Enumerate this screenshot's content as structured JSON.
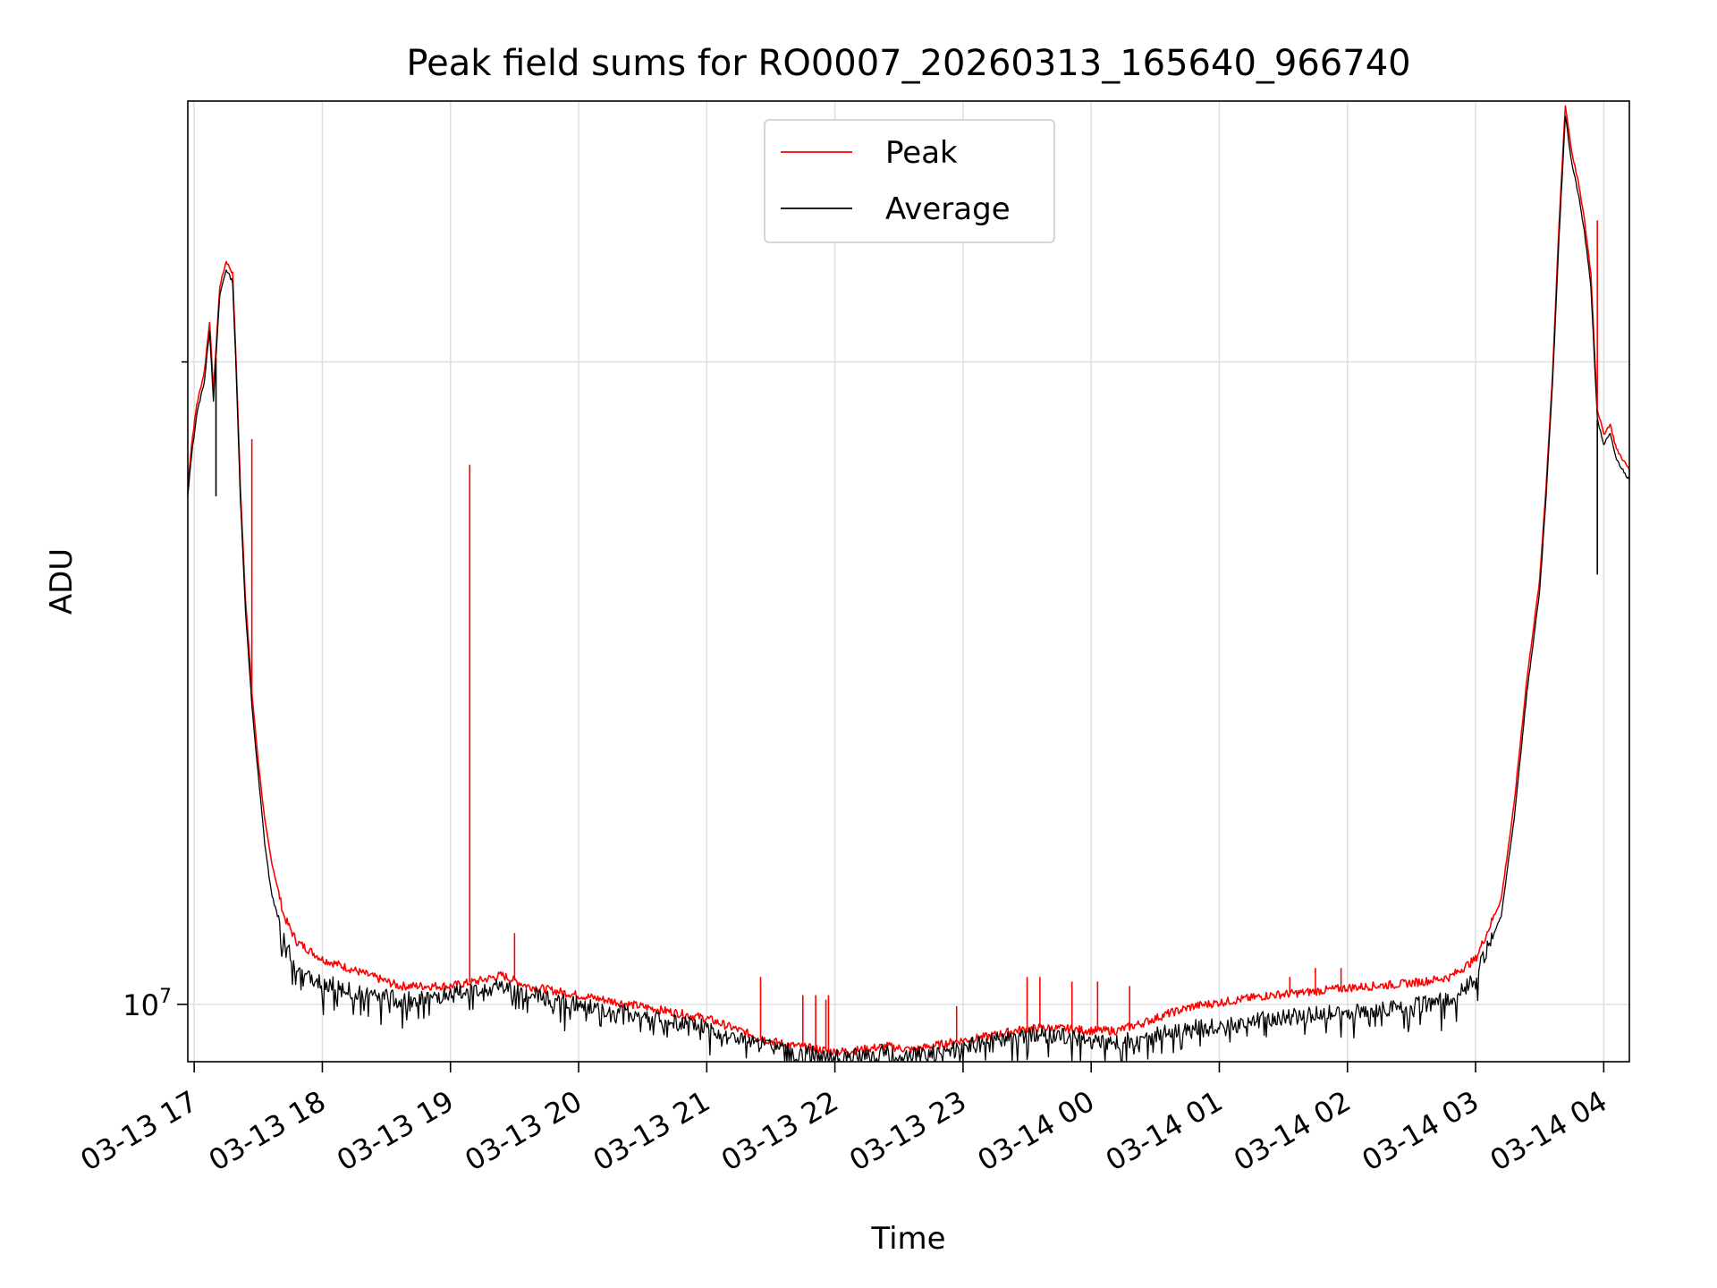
{
  "chart_data": {
    "type": "line",
    "title": "Peak field sums for RO0007_20260313_165640_966740",
    "xlabel": "Time",
    "ylabel": "ADU",
    "yscale": "log",
    "ylim": [
      9400000,
      26500000
    ],
    "xlim_hours": [
      16.95,
      28.2
    ],
    "grid": true,
    "legend_position": "top-center",
    "x_ticks": [
      {
        "hour": 17,
        "label": "03-13 17"
      },
      {
        "hour": 18,
        "label": "03-13 18"
      },
      {
        "hour": 19,
        "label": "03-13 19"
      },
      {
        "hour": 20,
        "label": "03-13 20"
      },
      {
        "hour": 21,
        "label": "03-13 21"
      },
      {
        "hour": 22,
        "label": "03-13 22"
      },
      {
        "hour": 23,
        "label": "03-13 23"
      },
      {
        "hour": 24,
        "label": "03-14 00"
      },
      {
        "hour": 25,
        "label": "03-14 01"
      },
      {
        "hour": 26,
        "label": "03-14 02"
      },
      {
        "hour": 27,
        "label": "03-14 03"
      },
      {
        "hour": 28,
        "label": "03-14 04"
      }
    ],
    "y_major_ticks": [
      {
        "value": 10000000,
        "label_base": "10",
        "label_exp": "7"
      }
    ],
    "y_minor_ticks": [
      9000000,
      20000000,
      30000000,
      40000000,
      50000000,
      60000000
    ],
    "series": [
      {
        "name": "Peak",
        "color": "#ff0000",
        "x_hours": [
          16.95,
          16.98,
          17.02,
          17.08,
          17.12,
          17.15,
          17.2,
          17.25,
          17.3,
          17.33,
          17.36,
          17.4,
          17.45,
          17.5,
          17.55,
          17.6,
          17.7,
          17.8,
          17.9,
          18.0,
          18.2,
          18.4,
          18.6,
          18.8,
          19.0,
          19.2,
          19.4,
          19.6,
          19.8,
          20.0,
          20.2,
          20.4,
          20.6,
          20.8,
          21.0,
          21.2,
          21.4,
          21.6,
          21.8,
          22.0,
          22.2,
          22.4,
          22.6,
          22.8,
          23.0,
          23.2,
          23.4,
          23.6,
          23.8,
          24.0,
          24.2,
          24.4,
          24.6,
          24.8,
          25.0,
          25.2,
          25.4,
          25.6,
          25.8,
          26.0,
          26.2,
          26.4,
          26.6,
          26.8,
          27.0,
          27.2,
          27.3,
          27.4,
          27.5,
          27.55,
          27.6,
          27.65,
          27.7,
          27.75,
          27.8,
          27.85,
          27.9,
          27.95,
          28.0,
          28.05,
          28.1,
          28.15,
          28.2
        ],
        "values": [
          17500000,
          18300000,
          19100000,
          19800000,
          20900000,
          19400000,
          21700000,
          22300000,
          22000000,
          19800000,
          17500000,
          15500000,
          14000000,
          13000000,
          12200000,
          11700000,
          11000000,
          10700000,
          10600000,
          10500000,
          10400000,
          10300000,
          10200000,
          10200000,
          10200000,
          10250000,
          10320000,
          10200000,
          10150000,
          10100000,
          10050000,
          10000000,
          9950000,
          9900000,
          9850000,
          9750000,
          9650000,
          9580000,
          9540000,
          9500000,
          9520000,
          9560000,
          9520000,
          9570000,
          9620000,
          9660000,
          9720000,
          9750000,
          9740000,
          9720000,
          9720000,
          9800000,
          9900000,
          9980000,
          10020000,
          10060000,
          10100000,
          10120000,
          10150000,
          10180000,
          10200000,
          10220000,
          10250000,
          10300000,
          10500000,
          11200000,
          12400000,
          14200000,
          15800000,
          17500000,
          19700000,
          23100000,
          26400000,
          25100000,
          24300000,
          23300000,
          22000000,
          19000000,
          18500000,
          18700000,
          18200000,
          18000000,
          17800000
        ]
      },
      {
        "name": "Average",
        "color": "#000000",
        "x_hours": [
          16.95,
          16.98,
          17.02,
          17.08,
          17.12,
          17.15,
          17.2,
          17.25,
          17.3,
          17.33,
          17.36,
          17.4,
          17.45,
          17.5,
          17.55,
          17.6,
          17.7,
          17.8,
          17.9,
          18.0,
          18.2,
          18.4,
          18.6,
          18.8,
          19.0,
          19.2,
          19.4,
          19.6,
          19.8,
          20.0,
          20.2,
          20.4,
          20.6,
          20.8,
          21.0,
          21.2,
          21.4,
          21.6,
          21.8,
          22.0,
          22.2,
          22.4,
          22.6,
          22.8,
          23.0,
          23.2,
          23.4,
          23.6,
          23.8,
          24.0,
          24.2,
          24.4,
          24.6,
          24.8,
          25.0,
          25.2,
          25.4,
          25.6,
          25.8,
          26.0,
          26.2,
          26.4,
          26.6,
          26.8,
          27.0,
          27.2,
          27.3,
          27.4,
          27.5,
          27.55,
          27.6,
          27.65,
          27.7,
          27.75,
          27.8,
          27.85,
          27.9,
          27.95,
          28.0,
          28.05,
          28.1,
          28.15,
          28.2
        ],
        "values": [
          17300000,
          18100000,
          18900000,
          19600000,
          20700000,
          19200000,
          21500000,
          22100000,
          21800000,
          19600000,
          17300000,
          15300000,
          13800000,
          12800000,
          11900000,
          11300000,
          10700000,
          10400000,
          10300000,
          10250000,
          10150000,
          10100000,
          10050000,
          10050000,
          10100000,
          10150000,
          10200000,
          10100000,
          10050000,
          10000000,
          9950000,
          9900000,
          9850000,
          9800000,
          9750000,
          9650000,
          9580000,
          9520000,
          9480000,
          9440000,
          9460000,
          9480000,
          9450000,
          9500000,
          9550000,
          9600000,
          9650000,
          9680000,
          9660000,
          9620000,
          9600000,
          9630000,
          9700000,
          9750000,
          9780000,
          9820000,
          9850000,
          9870000,
          9900000,
          9920000,
          9940000,
          9960000,
          10000000,
          10050000,
          10300000,
          11000000,
          12200000,
          14000000,
          15600000,
          17300000,
          19500000,
          22800000,
          26100000,
          24800000,
          24000000,
          23000000,
          21700000,
          18800000,
          18300000,
          18500000,
          18000000,
          17800000,
          17600000
        ]
      }
    ],
    "spikes": [
      {
        "series": "Peak",
        "hour": 19.15,
        "value": 17900000
      },
      {
        "series": "Peak",
        "hour": 17.45,
        "value": 18400000
      },
      {
        "series": "Peak",
        "hour": 19.5,
        "value": 10800000
      },
      {
        "series": "Peak",
        "hour": 21.42,
        "value": 10300000
      },
      {
        "series": "Peak",
        "hour": 21.75,
        "value": 10100000
      },
      {
        "series": "Peak",
        "hour": 21.85,
        "value": 10100000
      },
      {
        "series": "Peak",
        "hour": 21.95,
        "value": 10100000
      },
      {
        "series": "Peak",
        "hour": 21.93,
        "value": 10050000
      },
      {
        "series": "Peak",
        "hour": 22.95,
        "value": 9980000
      },
      {
        "series": "Peak",
        "hour": 23.5,
        "value": 10300000
      },
      {
        "series": "Peak",
        "hour": 23.6,
        "value": 10300000
      },
      {
        "series": "Peak",
        "hour": 23.85,
        "value": 10250000
      },
      {
        "series": "Peak",
        "hour": 24.05,
        "value": 10250000
      },
      {
        "series": "Peak",
        "hour": 24.3,
        "value": 10200000
      },
      {
        "series": "Peak",
        "hour": 25.55,
        "value": 10300000
      },
      {
        "series": "Peak",
        "hour": 25.75,
        "value": 10400000
      },
      {
        "series": "Peak",
        "hour": 25.95,
        "value": 10400000
      },
      {
        "series": "Peak",
        "hour": 27.95,
        "value": 23300000
      },
      {
        "series": "Average",
        "hour": 27.95,
        "value": 15900000
      },
      {
        "series": "Average",
        "hour": 17.17,
        "value": 17300000
      }
    ]
  }
}
